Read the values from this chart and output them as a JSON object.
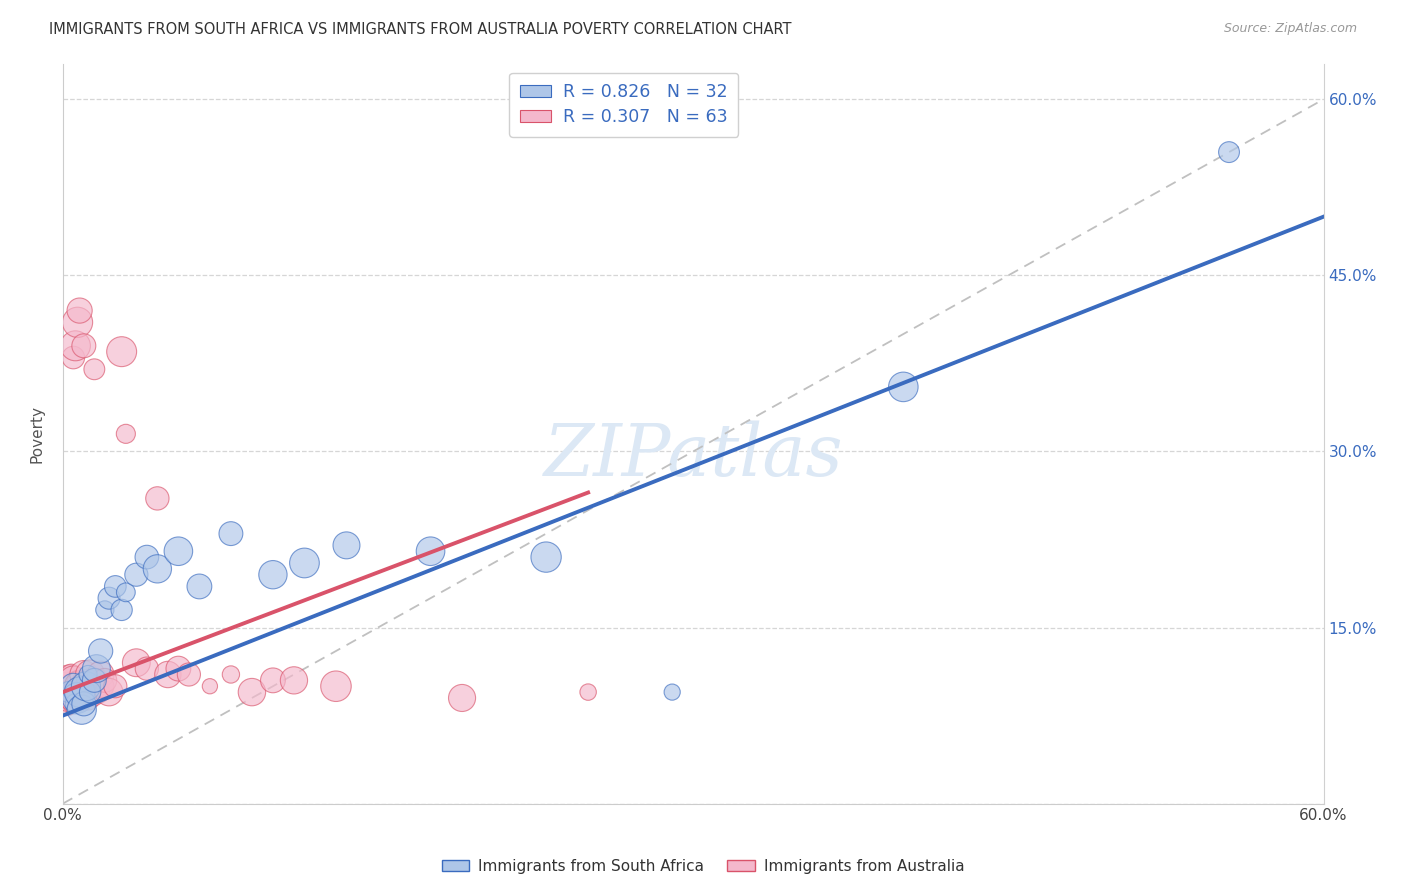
{
  "title": "IMMIGRANTS FROM SOUTH AFRICA VS IMMIGRANTS FROM AUSTRALIA POVERTY CORRELATION CHART",
  "source": "Source: ZipAtlas.com",
  "ylabel": "Poverty",
  "legend_south_africa": "Immigrants from South Africa",
  "legend_australia": "Immigrants from Australia",
  "R_sa": 0.826,
  "N_sa": 32,
  "R_au": 0.307,
  "N_au": 63,
  "color_sa": "#aec6e8",
  "color_au": "#f4b8cc",
  "line_color_sa": "#3a6bbf",
  "line_color_au": "#d9536a",
  "watermark_text": "ZIPatlas",
  "watermark_color": "#dce8f5",
  "background_color": "#ffffff",
  "xlim": [
    0.0,
    0.6
  ],
  "ylim": [
    0.0,
    0.63
  ],
  "blue_line_x0": 0.0,
  "blue_line_y0": 0.075,
  "blue_line_x1": 0.6,
  "blue_line_y1": 0.5,
  "pink_line_x0": 0.0,
  "pink_line_y0": 0.095,
  "pink_line_x1": 0.25,
  "pink_line_y1": 0.265,
  "sa_points": [
    [
      0.003,
      0.095
    ],
    [
      0.005,
      0.1
    ],
    [
      0.006,
      0.085
    ],
    [
      0.007,
      0.09
    ],
    [
      0.008,
      0.095
    ],
    [
      0.009,
      0.08
    ],
    [
      0.01,
      0.085
    ],
    [
      0.011,
      0.1
    ],
    [
      0.012,
      0.11
    ],
    [
      0.013,
      0.095
    ],
    [
      0.015,
      0.105
    ],
    [
      0.016,
      0.115
    ],
    [
      0.018,
      0.13
    ],
    [
      0.02,
      0.165
    ],
    [
      0.022,
      0.175
    ],
    [
      0.025,
      0.185
    ],
    [
      0.028,
      0.165
    ],
    [
      0.03,
      0.18
    ],
    [
      0.035,
      0.195
    ],
    [
      0.04,
      0.21
    ],
    [
      0.045,
      0.2
    ],
    [
      0.055,
      0.215
    ],
    [
      0.065,
      0.185
    ],
    [
      0.08,
      0.23
    ],
    [
      0.1,
      0.195
    ],
    [
      0.115,
      0.205
    ],
    [
      0.135,
      0.22
    ],
    [
      0.175,
      0.215
    ],
    [
      0.23,
      0.21
    ],
    [
      0.29,
      0.095
    ],
    [
      0.4,
      0.355
    ],
    [
      0.555,
      0.555
    ]
  ],
  "au_points": [
    [
      0.001,
      0.095
    ],
    [
      0.002,
      0.1
    ],
    [
      0.002,
      0.085
    ],
    [
      0.003,
      0.09
    ],
    [
      0.003,
      0.105
    ],
    [
      0.003,
      0.095
    ],
    [
      0.004,
      0.1
    ],
    [
      0.004,
      0.085
    ],
    [
      0.004,
      0.11
    ],
    [
      0.005,
      0.095
    ],
    [
      0.005,
      0.09
    ],
    [
      0.005,
      0.105
    ],
    [
      0.005,
      0.38
    ],
    [
      0.006,
      0.095
    ],
    [
      0.006,
      0.1
    ],
    [
      0.006,
      0.39
    ],
    [
      0.007,
      0.105
    ],
    [
      0.007,
      0.095
    ],
    [
      0.007,
      0.41
    ],
    [
      0.007,
      0.1
    ],
    [
      0.008,
      0.09
    ],
    [
      0.008,
      0.1
    ],
    [
      0.008,
      0.095
    ],
    [
      0.008,
      0.42
    ],
    [
      0.009,
      0.095
    ],
    [
      0.009,
      0.105
    ],
    [
      0.009,
      0.1
    ],
    [
      0.01,
      0.11
    ],
    [
      0.01,
      0.095
    ],
    [
      0.01,
      0.39
    ],
    [
      0.011,
      0.1
    ],
    [
      0.011,
      0.095
    ],
    [
      0.012,
      0.105
    ],
    [
      0.012,
      0.09
    ],
    [
      0.013,
      0.1
    ],
    [
      0.013,
      0.11
    ],
    [
      0.014,
      0.095
    ],
    [
      0.014,
      0.105
    ],
    [
      0.015,
      0.1
    ],
    [
      0.015,
      0.37
    ],
    [
      0.016,
      0.105
    ],
    [
      0.017,
      0.095
    ],
    [
      0.018,
      0.11
    ],
    [
      0.019,
      0.1
    ],
    [
      0.02,
      0.105
    ],
    [
      0.022,
      0.095
    ],
    [
      0.025,
      0.1
    ],
    [
      0.028,
      0.385
    ],
    [
      0.03,
      0.315
    ],
    [
      0.035,
      0.12
    ],
    [
      0.04,
      0.115
    ],
    [
      0.045,
      0.26
    ],
    [
      0.05,
      0.11
    ],
    [
      0.055,
      0.115
    ],
    [
      0.06,
      0.11
    ],
    [
      0.07,
      0.1
    ],
    [
      0.08,
      0.11
    ],
    [
      0.09,
      0.095
    ],
    [
      0.1,
      0.105
    ],
    [
      0.11,
      0.105
    ],
    [
      0.13,
      0.1
    ],
    [
      0.19,
      0.09
    ],
    [
      0.25,
      0.095
    ]
  ]
}
